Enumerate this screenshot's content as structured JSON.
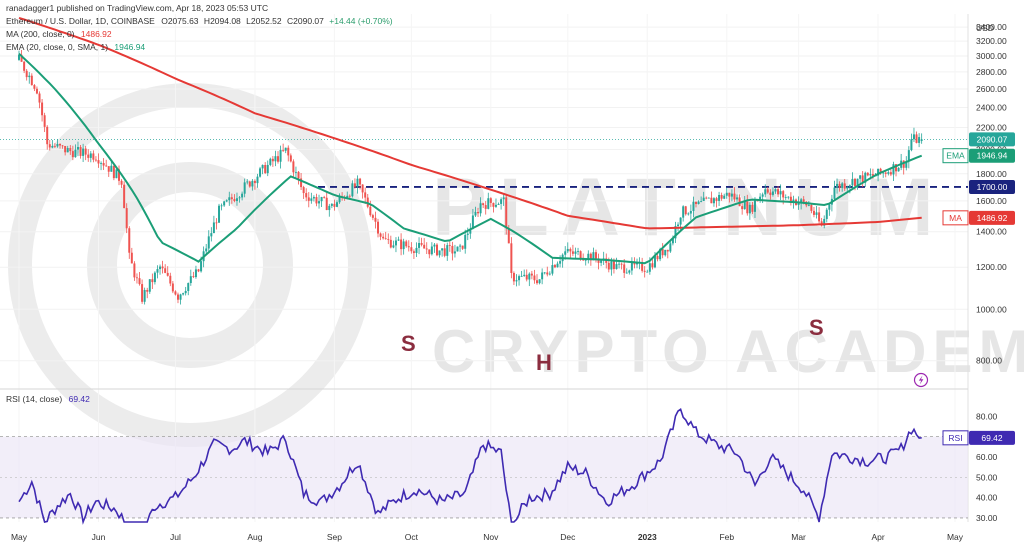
{
  "header": {
    "publisher": "ranadagger1 published on TradingView.com, Apr 18, 2023 05:53 UTC",
    "symbol": "Ethereum / U.S. Dollar, 1D, COINBASE",
    "o_label": "O",
    "o": "2075.63",
    "h_label": "H",
    "h": "2094.08",
    "l_label": "L",
    "l": "2052.52",
    "c_label": "C",
    "c": "2090.07",
    "change": "+14.44 (+0.70%)",
    "ma_label": "MA (200, close, 0)",
    "ma_value": "1486.92",
    "ema_label": "EMA (20, close, 0, SMA, 1)",
    "ema_value": "1946.94"
  },
  "watermark": {
    "line1": "PLATINUM",
    "line2": "CRYPTO ACADEMY"
  },
  "annotations": {
    "left_shoulder": "S",
    "head": "H",
    "right_shoulder": "S"
  },
  "colors": {
    "up": "#26a69a",
    "down": "#ef5350",
    "ema": "#1b9e77",
    "ma": "#e53935",
    "rsi": "#3f2ab2",
    "rsi_band": "#ede7f6",
    "neckline": "#1a237e",
    "price_tag": "#26a69a"
  },
  "chart_data": [
    {
      "type": "candlestick",
      "currency_label": "USD",
      "y_ticks": [
        800,
        1000,
        1200,
        1400,
        1600,
        1800,
        2000,
        2200,
        2400,
        2600,
        2800,
        3000,
        3200,
        3400
      ],
      "ylim": [
        720,
        3600
      ],
      "x_labels": [
        "May",
        "Jun",
        "Jul",
        "Aug",
        "Sep",
        "Oct",
        "Nov",
        "Dec",
        "2023",
        "Feb",
        "Mar",
        "Apr",
        "May"
      ],
      "support_line": 1700,
      "tags": {
        "price": "2090.07",
        "ema_name": "EMA",
        "ema": "1946.94",
        "support": "1700.00",
        "ma_name": "MA",
        "ma": "1486.92"
      },
      "candle_anchors": [
        [
          "2022-05-01",
          2950
        ],
        [
          "2022-05-08",
          2600
        ],
        [
          "2022-05-12",
          2050
        ],
        [
          "2022-05-20",
          1990
        ],
        [
          "2022-05-31",
          1950
        ],
        [
          "2022-06-10",
          1750
        ],
        [
          "2022-06-13",
          1250
        ],
        [
          "2022-06-18",
          1050
        ],
        [
          "2022-06-25",
          1200
        ],
        [
          "2022-07-02",
          1060
        ],
        [
          "2022-07-10",
          1180
        ],
        [
          "2022-07-18",
          1530
        ],
        [
          "2022-07-28",
          1700
        ],
        [
          "2022-08-13",
          1990
        ],
        [
          "2022-08-20",
          1650
        ],
        [
          "2022-08-31",
          1560
        ],
        [
          "2022-09-10",
          1720
        ],
        [
          "2022-09-20",
          1350
        ],
        [
          "2022-10-01",
          1310
        ],
        [
          "2022-10-12",
          1290
        ],
        [
          "2022-10-20",
          1290
        ],
        [
          "2022-10-28",
          1580
        ],
        [
          "2022-11-06",
          1600
        ],
        [
          "2022-11-09",
          1150
        ],
        [
          "2022-11-20",
          1140
        ],
        [
          "2022-11-30",
          1280
        ],
        [
          "2022-12-10",
          1260
        ],
        [
          "2022-12-20",
          1200
        ],
        [
          "2023-01-01",
          1200
        ],
        [
          "2023-01-10",
          1330
        ],
        [
          "2023-01-14",
          1520
        ],
        [
          "2023-01-25",
          1600
        ],
        [
          "2023-02-02",
          1650
        ],
        [
          "2023-02-10",
          1540
        ],
        [
          "2023-02-16",
          1690
        ],
        [
          "2023-02-25",
          1620
        ],
        [
          "2023-03-05",
          1570
        ],
        [
          "2023-03-10",
          1430
        ],
        [
          "2023-03-15",
          1700
        ],
        [
          "2023-03-25",
          1760
        ],
        [
          "2023-04-02",
          1800
        ],
        [
          "2023-04-12",
          1900
        ],
        [
          "2023-04-14",
          2090
        ],
        [
          "2023-04-18",
          2090
        ]
      ],
      "ma200_anchors": [
        [
          "2022-05-01",
          3540
        ],
        [
          "2022-06-01",
          3150
        ],
        [
          "2022-07-01",
          2720
        ],
        [
          "2022-08-01",
          2340
        ],
        [
          "2022-09-01",
          2100
        ],
        [
          "2022-10-01",
          1870
        ],
        [
          "2022-11-01",
          1680
        ],
        [
          "2022-12-01",
          1500
        ],
        [
          "2023-01-01",
          1420
        ],
        [
          "2023-02-01",
          1430
        ],
        [
          "2023-03-01",
          1440
        ],
        [
          "2023-04-01",
          1460
        ],
        [
          "2023-04-18",
          1487
        ]
      ],
      "ema20_anchors": [
        [
          "2022-05-01",
          3030
        ],
        [
          "2022-05-15",
          2600
        ],
        [
          "2022-06-01",
          2050
        ],
        [
          "2022-06-15",
          1650
        ],
        [
          "2022-06-25",
          1340
        ],
        [
          "2022-07-10",
          1230
        ],
        [
          "2022-07-25",
          1420
        ],
        [
          "2022-08-15",
          1780
        ],
        [
          "2022-09-01",
          1640
        ],
        [
          "2022-09-15",
          1580
        ],
        [
          "2022-09-28",
          1420
        ],
        [
          "2022-10-15",
          1340
        ],
        [
          "2022-11-01",
          1480
        ],
        [
          "2022-11-10",
          1400
        ],
        [
          "2022-11-25",
          1250
        ],
        [
          "2022-12-15",
          1240
        ],
        [
          "2023-01-01",
          1220
        ],
        [
          "2023-01-20",
          1490
        ],
        [
          "2023-02-10",
          1610
        ],
        [
          "2023-03-01",
          1590
        ],
        [
          "2023-03-12",
          1570
        ],
        [
          "2023-04-01",
          1800
        ],
        [
          "2023-04-18",
          1947
        ]
      ]
    },
    {
      "type": "line",
      "name": "RSI (14, close)",
      "tag_name": "RSI",
      "value": "69.42",
      "y_ticks": [
        30,
        40,
        50,
        60,
        70,
        80
      ],
      "ylim": [
        28,
        90
      ],
      "band": [
        30,
        70
      ],
      "anchors": [
        [
          "2022-05-01",
          38
        ],
        [
          "2022-05-06",
          48
        ],
        [
          "2022-05-11",
          28
        ],
        [
          "2022-05-16",
          36
        ],
        [
          "2022-05-21",
          42
        ],
        [
          "2022-05-26",
          30
        ],
        [
          "2022-05-31",
          38
        ],
        [
          "2022-06-08",
          34
        ],
        [
          "2022-06-13",
          25
        ],
        [
          "2022-06-18",
          22
        ],
        [
          "2022-06-23",
          36
        ],
        [
          "2022-07-01",
          40
        ],
        [
          "2022-07-08",
          50
        ],
        [
          "2022-07-16",
          66
        ],
        [
          "2022-07-23",
          64
        ],
        [
          "2022-07-28",
          68
        ],
        [
          "2022-08-06",
          62
        ],
        [
          "2022-08-13",
          69
        ],
        [
          "2022-08-20",
          42
        ],
        [
          "2022-08-27",
          38
        ],
        [
          "2022-09-03",
          46
        ],
        [
          "2022-09-10",
          58
        ],
        [
          "2022-09-18",
          32
        ],
        [
          "2022-09-26",
          40
        ],
        [
          "2022-10-03",
          44
        ],
        [
          "2022-10-13",
          38
        ],
        [
          "2022-10-22",
          42
        ],
        [
          "2022-10-29",
          66
        ],
        [
          "2022-11-05",
          62
        ],
        [
          "2022-11-09",
          26
        ],
        [
          "2022-11-16",
          40
        ],
        [
          "2022-11-24",
          42
        ],
        [
          "2022-12-01",
          55
        ],
        [
          "2022-12-08",
          52
        ],
        [
          "2022-12-16",
          38
        ],
        [
          "2022-12-26",
          46
        ],
        [
          "2023-01-06",
          58
        ],
        [
          "2023-01-14",
          84
        ],
        [
          "2023-01-20",
          72
        ],
        [
          "2023-01-28",
          66
        ],
        [
          "2023-02-05",
          62
        ],
        [
          "2023-02-12",
          46
        ],
        [
          "2023-02-18",
          60
        ],
        [
          "2023-02-26",
          50
        ],
        [
          "2023-03-03",
          44
        ],
        [
          "2023-03-09",
          30
        ],
        [
          "2023-03-14",
          62
        ],
        [
          "2023-03-21",
          60
        ],
        [
          "2023-03-28",
          58
        ],
        [
          "2023-04-05",
          60
        ],
        [
          "2023-04-10",
          64
        ],
        [
          "2023-04-14",
          74
        ],
        [
          "2023-04-18",
          69.42
        ]
      ]
    }
  ]
}
